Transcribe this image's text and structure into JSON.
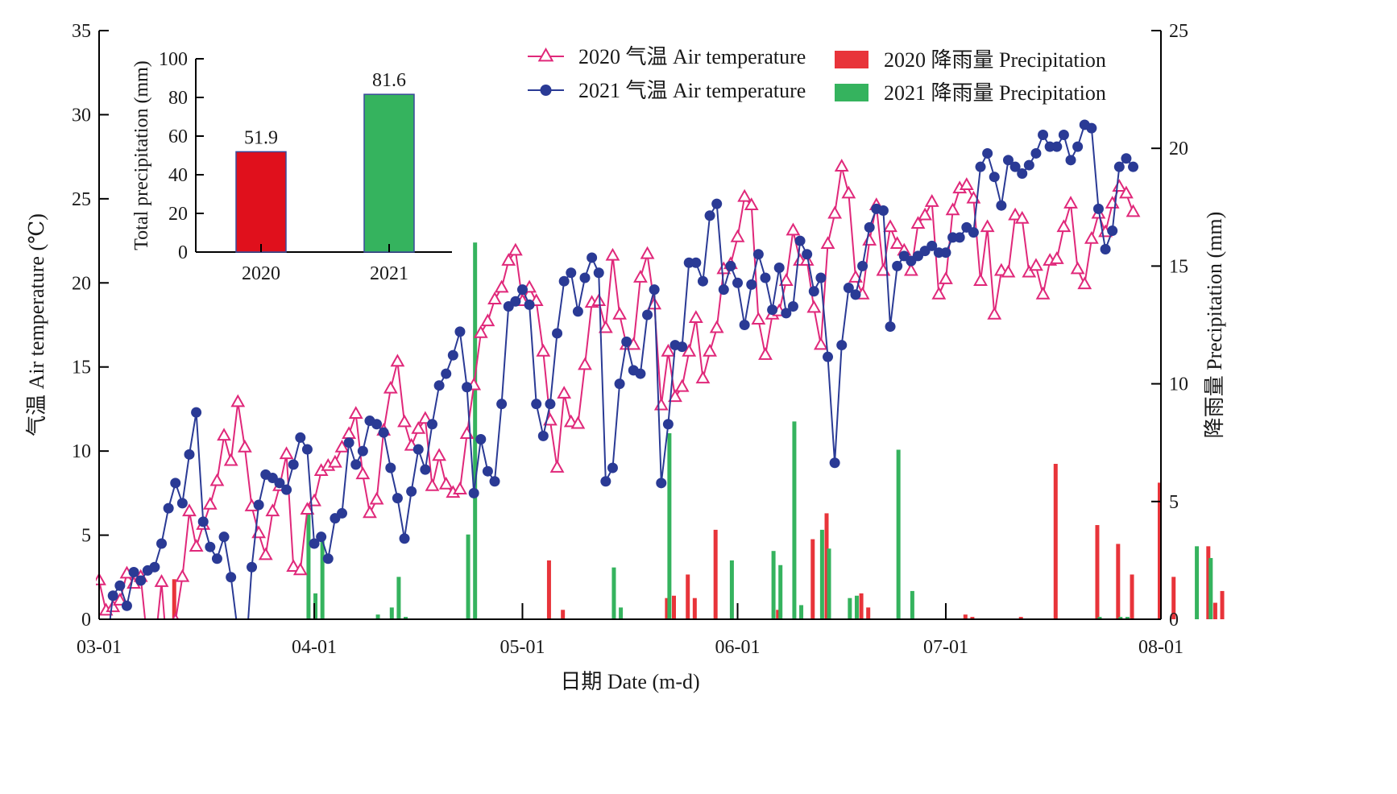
{
  "chart_data": [
    {
      "type": "line+bar",
      "x_axis": {
        "label": "日期 Date (m-d)",
        "ticks": [
          "03-01",
          "04-01",
          "05-01",
          "06-01",
          "07-01",
          "08-01"
        ],
        "range_days": [
          0,
          153
        ]
      },
      "y_left": {
        "label": "气温 Air temperature (℃)",
        "range": [
          0,
          35
        ],
        "ticks": [
          0,
          5,
          10,
          15,
          20,
          25,
          30,
          35
        ]
      },
      "y_right": {
        "label": "降雨量 Precipitation (mm)",
        "range": [
          0,
          25
        ],
        "ticks": [
          0,
          5,
          10,
          15,
          20,
          25
        ]
      },
      "legend": {
        "placement": "top-right",
        "items": [
          {
            "label": "2020 气温 Air temperature",
            "marker": "triangle",
            "color": "#e0287a"
          },
          {
            "label": "2021 气温 Air temperature",
            "marker": "circle",
            "color": "#2a3a95"
          },
          {
            "label": "2020 降雨量 Precipitation",
            "marker": "bar",
            "color": "#e8343a"
          },
          {
            "label": "2021 降雨量 Precipitation",
            "marker": "bar",
            "color": "#35b35e"
          }
        ]
      },
      "series": [
        {
          "year": "2020",
          "kind": "temperature",
          "color": "#e0287a",
          "values": [
            2.3,
            0.5,
            0.7,
            1.1,
            2.7,
            2.1,
            2.5,
            -1.5,
            -1.8,
            2.2,
            -3.0,
            -0.1,
            2.5,
            6.4,
            4.3,
            5.6,
            6.8,
            8.2,
            10.9,
            9.4,
            12.9,
            10.2,
            6.7,
            5.1,
            3.8,
            6.4,
            7.9,
            9.8,
            3.1,
            2.9,
            6.5,
            7.0,
            8.8,
            9.1,
            9.3,
            10.2,
            11.0,
            12.2,
            8.6,
            6.3,
            7.1,
            11.2,
            13.7,
            15.3,
            11.7,
            10.3,
            11.3,
            11.9,
            7.9,
            9.7,
            8.0,
            7.5,
            7.7,
            11.0,
            13.9,
            17.0,
            17.7,
            19.0,
            19.7,
            21.3,
            21.9,
            18.9,
            19.7,
            18.9,
            15.9,
            11.8,
            9.0,
            13.4,
            11.7,
            11.6,
            15.1,
            18.8,
            18.9,
            17.3,
            21.6,
            18.1,
            16.3,
            16.3,
            20.3,
            21.7,
            18.7,
            12.7,
            15.9,
            13.2,
            13.8,
            15.9,
            17.9,
            14.3,
            15.9,
            17.3,
            20.8,
            21.1,
            22.7,
            25.1,
            24.6,
            17.8,
            15.7,
            18.1,
            18.3,
            20.1,
            23.1,
            21.3,
            21.3,
            18.5,
            16.3,
            22.3,
            24.1,
            26.9,
            25.3,
            20.3,
            19.3,
            22.5,
            24.6,
            20.7,
            23.3,
            22.3,
            21.9,
            20.7,
            23.5,
            24.0,
            24.8,
            19.3,
            20.2,
            24.3,
            25.6,
            25.8,
            25.0,
            20.1,
            23.3,
            18.1,
            20.7,
            20.6,
            24.0,
            23.8,
            20.6,
            21.0,
            19.3,
            21.3,
            21.4,
            23.3,
            24.7,
            20.8,
            19.9,
            22.6,
            24.1,
            23.0,
            24.7,
            25.7,
            25.3,
            24.2
          ]
        },
        {
          "year": "2021",
          "kind": "temperature",
          "color": "#2a3a95",
          "values": [
            -0.5,
            -2.0,
            1.4,
            2.0,
            0.8,
            2.8,
            2.3,
            2.9,
            3.1,
            4.5,
            6.6,
            8.1,
            6.9,
            9.8,
            12.3,
            5.8,
            4.3,
            3.6,
            4.9,
            2.5,
            -0.8,
            -3.0,
            3.1,
            6.8,
            8.6,
            8.4,
            8.1,
            7.7,
            9.2,
            10.8,
            10.1,
            4.5,
            4.9,
            3.6,
            6.0,
            6.3,
            10.5,
            9.2,
            10.0,
            11.8,
            11.6,
            11.1,
            9.0,
            7.2,
            4.8,
            7.6,
            10.1,
            8.9,
            11.6,
            13.9,
            14.6,
            15.7,
            17.1,
            13.8,
            7.5,
            10.7,
            8.8,
            8.2,
            12.8,
            18.6,
            18.9,
            19.6,
            18.7,
            12.8,
            10.9,
            12.8,
            17.0,
            20.1,
            20.6,
            18.3,
            20.3,
            21.5,
            20.6,
            8.2,
            9.0,
            14.0,
            16.5,
            14.8,
            14.6,
            18.1,
            19.6,
            8.1,
            11.6,
            16.3,
            16.2,
            21.2,
            21.2,
            20.1,
            24.0,
            24.7,
            19.6,
            21.0,
            20.0,
            17.5,
            19.9,
            21.7,
            20.3,
            18.4,
            20.9,
            18.2,
            18.6,
            22.5,
            21.7,
            19.5,
            20.3,
            15.6,
            9.3,
            16.3,
            19.7,
            19.3,
            21.0,
            23.3,
            24.4,
            24.3,
            17.4,
            21.0,
            21.6,
            21.3,
            21.6,
            21.9,
            22.2,
            21.8,
            21.8,
            22.7,
            22.7,
            23.3,
            23.0,
            26.9,
            27.7,
            26.3,
            24.6,
            27.3,
            26.9,
            26.5,
            27.0,
            27.7,
            28.8,
            28.1,
            28.1,
            28.8,
            27.3,
            28.1,
            29.4,
            29.2,
            24.4,
            22.0,
            23.1,
            26.9,
            27.4,
            26.9
          ]
        },
        {
          "year": "2020",
          "kind": "precipitation",
          "color": "#e8343a",
          "bars": [
            {
              "day": 11,
              "value": 1.7
            },
            {
              "day": 65,
              "value": 2.5
            },
            {
              "day": 67,
              "value": 0.4
            },
            {
              "day": 82,
              "value": 0.9
            },
            {
              "day": 83,
              "value": 1.0
            },
            {
              "day": 85,
              "value": 1.9
            },
            {
              "day": 86,
              "value": 0.9
            },
            {
              "day": 89,
              "value": 3.8
            },
            {
              "day": 98,
              "value": 0.4
            },
            {
              "day": 103,
              "value": 3.4
            },
            {
              "day": 105,
              "value": 4.5
            },
            {
              "day": 110,
              "value": 1.1
            },
            {
              "day": 111,
              "value": 0.5
            },
            {
              "day": 125,
              "value": 0.2
            },
            {
              "day": 126,
              "value": 0.1
            },
            {
              "day": 133,
              "value": 0.1
            },
            {
              "day": 138,
              "value": 6.6
            },
            {
              "day": 144,
              "value": 4.0
            },
            {
              "day": 147,
              "value": 3.2
            },
            {
              "day": 149,
              "value": 1.9
            },
            {
              "day": 153,
              "value": 5.8
            },
            {
              "day": 155,
              "value": 1.8
            },
            {
              "day": 160,
              "value": 3.1
            },
            {
              "day": 161,
              "value": 0.7
            },
            {
              "day": 162,
              "value": 1.2
            }
          ]
        },
        {
          "year": "2021",
          "kind": "precipitation",
          "color": "#35b35e",
          "bars": [
            {
              "day": 30,
              "value": 4.8
            },
            {
              "day": 31,
              "value": 1.1
            },
            {
              "day": 32,
              "value": 3.6
            },
            {
              "day": 40,
              "value": 0.2
            },
            {
              "day": 42,
              "value": 0.5
            },
            {
              "day": 43,
              "value": 1.8
            },
            {
              "day": 44,
              "value": 0.1
            },
            {
              "day": 53,
              "value": 3.6
            },
            {
              "day": 54,
              "value": 16.0
            },
            {
              "day": 74,
              "value": 2.2
            },
            {
              "day": 75,
              "value": 0.5
            },
            {
              "day": 82,
              "value": 7.9
            },
            {
              "day": 91,
              "value": 2.5
            },
            {
              "day": 97,
              "value": 2.9
            },
            {
              "day": 98,
              "value": 2.3
            },
            {
              "day": 100,
              "value": 8.4
            },
            {
              "day": 101,
              "value": 0.6
            },
            {
              "day": 104,
              "value": 3.8
            },
            {
              "day": 105,
              "value": 3.0
            },
            {
              "day": 108,
              "value": 0.9
            },
            {
              "day": 109,
              "value": 1.0
            },
            {
              "day": 115,
              "value": 7.2
            },
            {
              "day": 117,
              "value": 1.2
            },
            {
              "day": 144,
              "value": 0.1
            },
            {
              "day": 147,
              "value": 0.1
            },
            {
              "day": 148,
              "value": 0.1
            },
            {
              "day": 158,
              "value": 3.1
            },
            {
              "day": 160,
              "value": 2.6
            }
          ]
        }
      ]
    },
    {
      "type": "bar",
      "placement": "inset-top-left",
      "ylabel": "Total precipitation (mm)",
      "ylim": [
        0,
        100
      ],
      "yticks": [
        0,
        20,
        40,
        60,
        80,
        100
      ],
      "categories": [
        "2020",
        "2021"
      ],
      "values": [
        51.9,
        81.6
      ],
      "value_labels": [
        "51.9",
        "81.6"
      ],
      "colors": [
        "#e0101c",
        "#35b35e"
      ]
    }
  ]
}
